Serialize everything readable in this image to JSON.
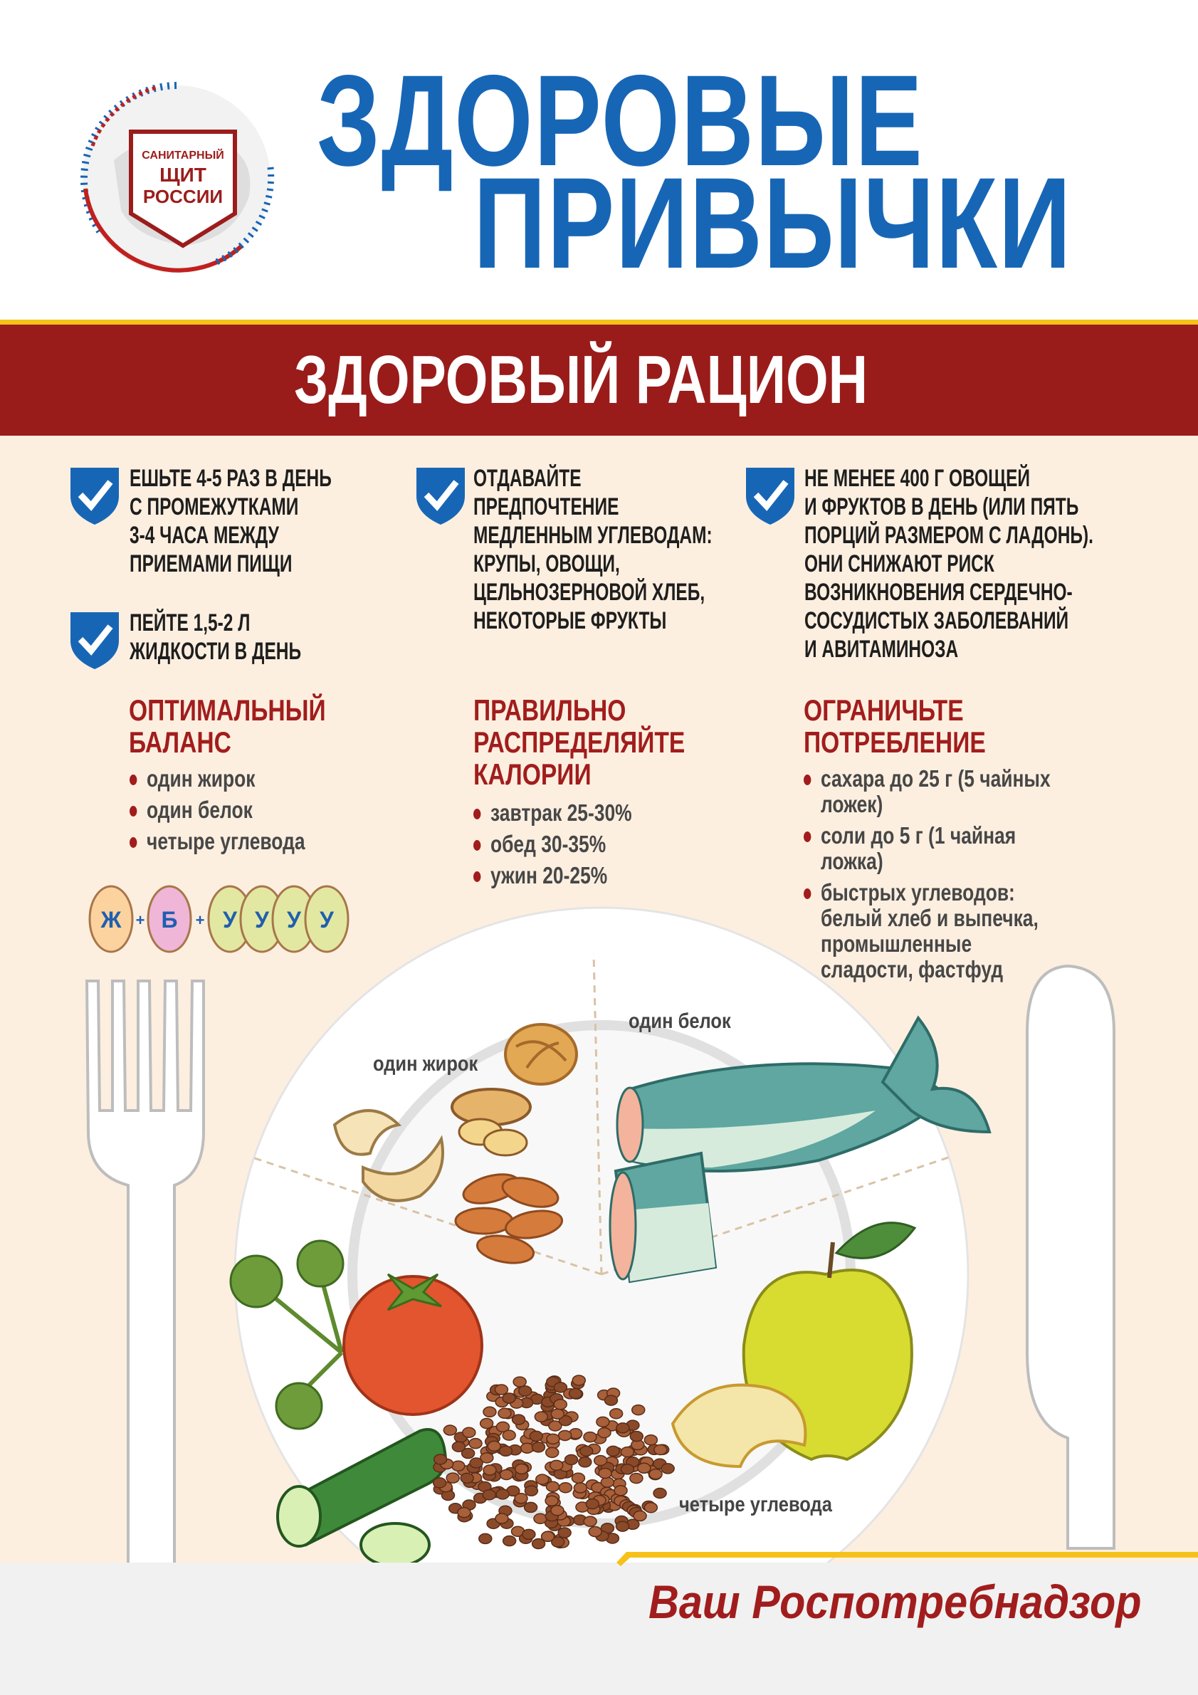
{
  "logo": {
    "text": [
      "САНИТАРНЫЙ",
      "ЩИТ",
      "РОССИИ"
    ]
  },
  "title": {
    "line1": "ЗДОРОВЫЕ",
    "line2": "ПРИВЫЧКИ"
  },
  "section_title": "ЗДОРОВЫЙ РАЦИОН",
  "tips": [
    {
      "lines": [
        "ЕШЬТЕ 4-5 РАЗ В ДЕНЬ",
        "С ПРОМЕЖУТКАМИ",
        "3-4 ЧАСА МЕЖДУ",
        "ПРИЕМАМИ ПИЩИ"
      ]
    },
    {
      "lines": [
        "ПЕЙТЕ 1,5-2 Л",
        "ЖИДКОСТИ В ДЕНЬ"
      ]
    },
    {
      "lines": [
        "ОТДАВАЙТЕ",
        "ПРЕДПОЧТЕНИЕ",
        "МЕДЛЕННЫМ УГЛЕВОДАМ:",
        "КРУПЫ, ОВОЩИ,",
        "ЦЕЛЬНОЗЕРНОВОЙ ХЛЕБ,",
        "НЕКОТОРЫЕ ФРУКТЫ"
      ]
    },
    {
      "lines": [
        "НЕ МЕНЕЕ 400 Г ОВОЩЕЙ",
        "И ФРУКТОВ В ДЕНЬ (ИЛИ ПЯТЬ",
        "ПОРЦИЙ РАЗМЕРОМ С ЛАДОНЬ).",
        "ОНИ СНИЖАЮТ РИСК",
        "ВОЗНИКНОВЕНИЯ СЕРДЕЧНО-",
        "СОСУДИСТЫХ  ЗАБОЛЕВАНИЙ",
        "И АВИТАМИНОЗА"
      ]
    }
  ],
  "balance": {
    "heading": [
      "ОПТИМАЛЬНЫЙ",
      "БАЛАНС"
    ],
    "items": [
      "один жирок",
      "один белок",
      "четыре углевода"
    ],
    "formula": {
      "letters": [
        "Ж",
        "Б",
        "У",
        "У",
        "У",
        "У"
      ],
      "plus": "+"
    }
  },
  "calories": {
    "heading": [
      "ПРАВИЛЬНО",
      "РАСПРЕДЕЛЯЙТЕ",
      "КАЛОРИИ"
    ],
    "items": [
      "завтрак 25-30%",
      "обед 30-35%",
      "ужин 20-25%"
    ]
  },
  "limit": {
    "heading": [
      "ОГРАНИЧЬТЕ",
      "ПОТРЕБЛЕНИЕ"
    ],
    "items": [
      [
        "сахара до 25 г (5 чайных",
        "ложек)"
      ],
      [
        "соли до 5 г (1 чайная",
        "ложка)"
      ],
      [
        "быстрых углеводов:",
        "белый хлеб и выпечка,",
        "промышленные",
        "сладости, фастфуд"
      ]
    ]
  },
  "plate_labels": {
    "fat": "один жирок",
    "protein": "один белок",
    "carbs": "четыре углевода"
  },
  "footer": "Ваш Роспотребнадзор",
  "colors": {
    "title_blue": "#1766b6",
    "band_red": "#991c1a",
    "accent_red": "#a11d1d",
    "background": "#fdefe0",
    "stripe_yellow": "#f6c21a"
  }
}
